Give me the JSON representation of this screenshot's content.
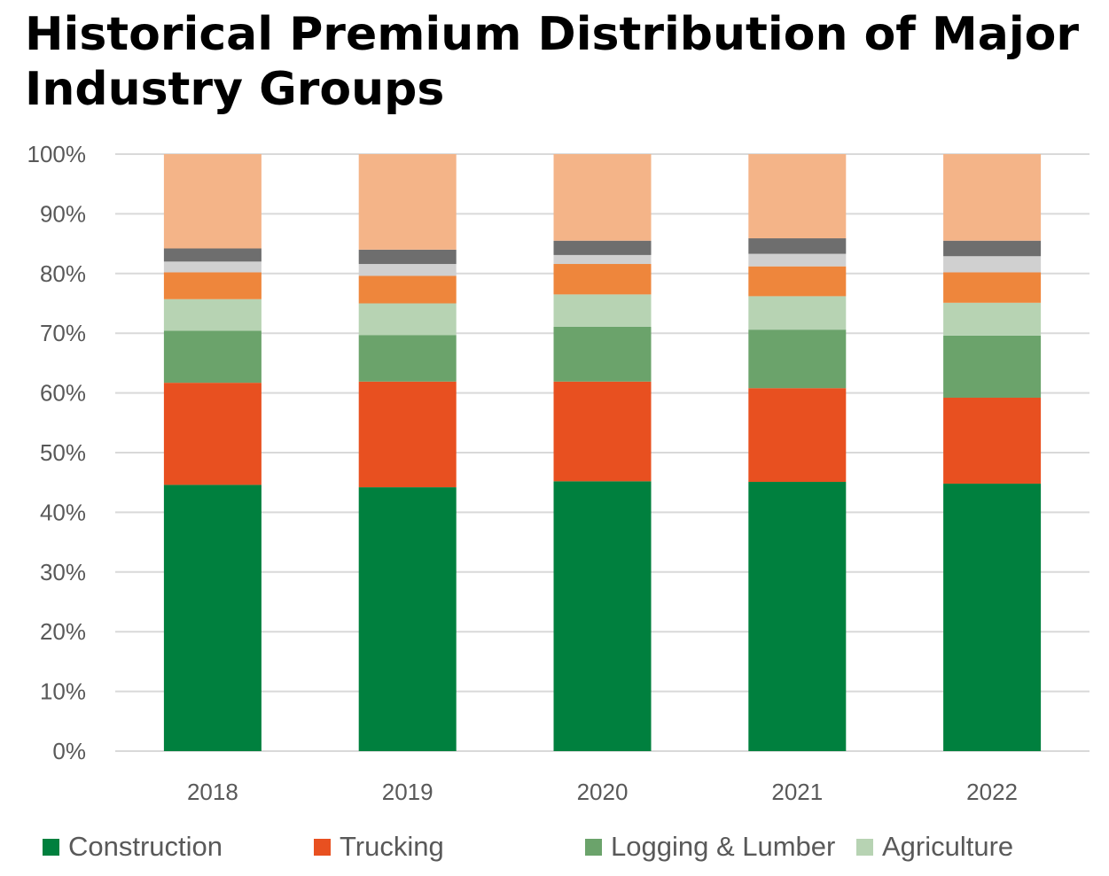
{
  "chart_data": {
    "type": "bar",
    "stacked": true,
    "title": "Historical Premium Distribution of Major Industry Groups",
    "categories": [
      "2018",
      "2019",
      "2020",
      "2021",
      "2022"
    ],
    "y_ticks": [
      "0%",
      "10%",
      "20%",
      "30%",
      "40%",
      "50%",
      "60%",
      "70%",
      "80%",
      "90%",
      "100%"
    ],
    "ylim": [
      0,
      100
    ],
    "grid": true,
    "legend_position": "bottom",
    "series": [
      {
        "name": "Construction",
        "color": "#00803E",
        "values": [
          44.6,
          44.2,
          45.2,
          45.1,
          44.8
        ]
      },
      {
        "name": "Trucking",
        "color": "#E85020",
        "values": [
          17.1,
          17.7,
          16.7,
          15.7,
          14.4
        ]
      },
      {
        "name": "Logging & Lumber",
        "color": "#6BA36B",
        "values": [
          8.7,
          7.8,
          9.2,
          9.8,
          10.4
        ]
      },
      {
        "name": "Agriculture",
        "color": "#B7D3B3",
        "values": [
          5.3,
          5.3,
          5.4,
          5.6,
          5.5
        ]
      },
      {
        "name": "",
        "color": "#EE863C",
        "values": [
          4.5,
          4.6,
          5.1,
          5.0,
          5.1
        ]
      },
      {
        "name": "",
        "color": "#D0D0D0",
        "values": [
          1.8,
          2.0,
          1.5,
          2.1,
          2.7
        ]
      },
      {
        "name": "",
        "color": "#6E6E6E",
        "values": [
          2.2,
          2.4,
          2.4,
          2.6,
          2.6
        ]
      },
      {
        "name": "",
        "color": "#F4B488",
        "values": [
          15.8,
          16.0,
          14.5,
          14.1,
          14.5
        ]
      }
    ]
  }
}
